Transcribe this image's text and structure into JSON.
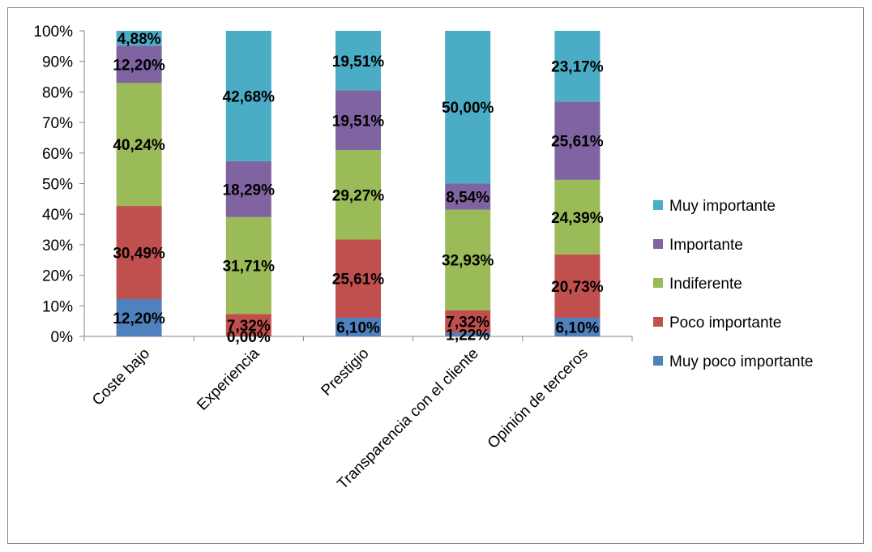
{
  "chart_data": {
    "type": "bar",
    "stacked": true,
    "percent_stacked": true,
    "categories": [
      "Coste bajo",
      "Experiencia",
      "Prestigio",
      "Transparencia con el cliente",
      "Opinión de terceros"
    ],
    "series": [
      {
        "name": "Muy poco importante",
        "color": "#4F81BD",
        "values": [
          12.2,
          0.0,
          6.1,
          1.22,
          6.1
        ],
        "labels": [
          "12,20%",
          "0,00%",
          "6,10%",
          "1,22%",
          "6,10%"
        ]
      },
      {
        "name": "Poco importante",
        "color": "#C0504D",
        "values": [
          30.49,
          7.32,
          25.61,
          7.32,
          20.73
        ],
        "labels": [
          "30,49%",
          "7,32%",
          "25,61%",
          "7,32%",
          "20,73%"
        ]
      },
      {
        "name": "Indiferente",
        "color": "#9BBB59",
        "values": [
          40.24,
          31.71,
          29.27,
          32.93,
          24.39
        ],
        "labels": [
          "40,24%",
          "31,71%",
          "29,27%",
          "32,93%",
          "24,39%"
        ]
      },
      {
        "name": "Importante",
        "color": "#8064A2",
        "values": [
          12.2,
          18.29,
          19.51,
          8.54,
          25.61
        ],
        "labels": [
          "12,20%",
          "18,29%",
          "19,51%",
          "8,54%",
          "25,61%"
        ]
      },
      {
        "name": "Muy importante",
        "color": "#4BACC6",
        "values": [
          4.88,
          42.68,
          19.51,
          50.0,
          23.17
        ],
        "labels": [
          "4,88%",
          "42,68%",
          "19,51%",
          "50,00%",
          "23,17%"
        ]
      }
    ],
    "yticks": [
      "0%",
      "10%",
      "20%",
      "30%",
      "40%",
      "50%",
      "60%",
      "70%",
      "80%",
      "90%",
      "100%"
    ],
    "ylim": [
      0,
      100
    ],
    "legend_position": "right",
    "grid": false
  }
}
